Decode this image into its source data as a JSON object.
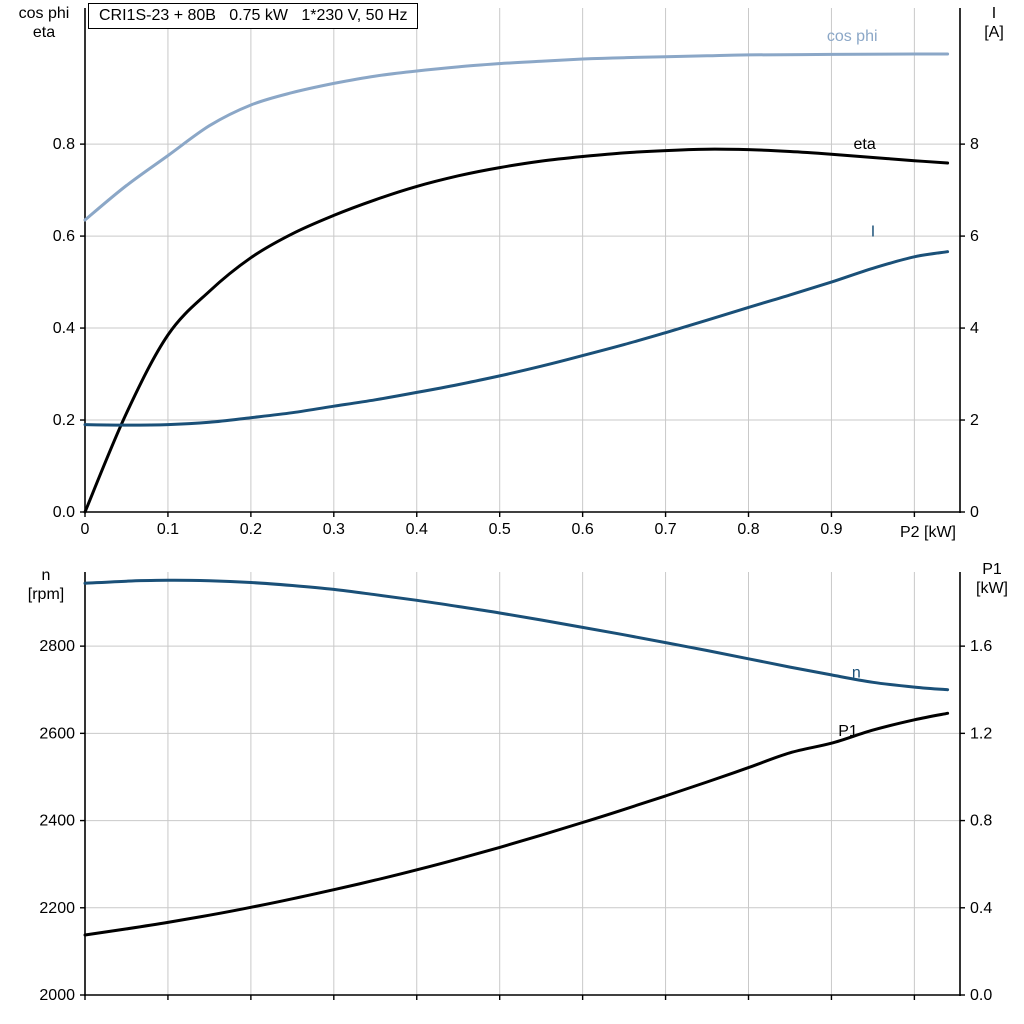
{
  "header": {
    "title_box": "CRI1S-23 + 80B   0.75 kW   1*230 V, 50 Hz"
  },
  "labels": {
    "top_left_line1": "cos phi",
    "top_left_line2": "eta",
    "top_right_line1": "I",
    "top_right_line2": "[A]",
    "x_axis_label": "P2 [kW]",
    "bottom_left_line1": "n",
    "bottom_left_line2": "[rpm]",
    "bottom_right_line1": "P1",
    "bottom_right_line2": "[kW]"
  },
  "colors": {
    "grid": "#c9c9c9",
    "axis": "#000000",
    "cos_phi": "#8ba7c7",
    "dark_blue": "#1a5078",
    "black_curve": "#000000"
  },
  "chart_data": [
    {
      "type": "line",
      "title": "CRI1S-23 + 80B   0.75 kW   1*230 V, 50 Hz",
      "x_label": "P2 [kW]",
      "x_range": [
        0,
        1.055
      ],
      "x_ticks": [
        0,
        0.1,
        0.2,
        0.3,
        0.4,
        0.5,
        0.6,
        0.7,
        0.8,
        0.9,
        1.0
      ],
      "x_tick_labels": [
        "0",
        "0.1",
        "0.2",
        "0.3",
        "0.4",
        "0.5",
        "0.6",
        "0.7",
        "0.8",
        "0.9",
        ""
      ],
      "left_axis": {
        "label": "cos phi / eta",
        "range": [
          0,
          1.096
        ],
        "ticks": [
          0,
          0.2,
          0.4,
          0.6,
          0.8
        ],
        "tick_labels": [
          "0.0",
          "0.2",
          "0.4",
          "0.6",
          "0.8"
        ]
      },
      "right_axis": {
        "label": "I [A]",
        "range": [
          0,
          10.96
        ],
        "ticks": [
          0,
          2,
          4,
          6,
          8
        ],
        "tick_labels": [
          "0",
          "2",
          "4",
          "6",
          "8"
        ]
      },
      "series": [
        {
          "name": "cos phi",
          "axis": "left",
          "color": "#8ba7c7",
          "label": {
            "text": "cos phi",
            "x": 0.925,
            "y": 1.035
          },
          "points": [
            [
              0,
              0.635
            ],
            [
              0.05,
              0.71
            ],
            [
              0.1,
              0.775
            ],
            [
              0.15,
              0.84
            ],
            [
              0.2,
              0.885
            ],
            [
              0.25,
              0.912
            ],
            [
              0.3,
              0.932
            ],
            [
              0.35,
              0.948
            ],
            [
              0.4,
              0.959
            ],
            [
              0.45,
              0.968
            ],
            [
              0.5,
              0.975
            ],
            [
              0.55,
              0.98
            ],
            [
              0.6,
              0.985
            ],
            [
              0.65,
              0.988
            ],
            [
              0.7,
              0.99
            ],
            [
              0.75,
              0.992
            ],
            [
              0.8,
              0.994
            ],
            [
              0.9,
              0.995
            ],
            [
              1.0,
              0.996
            ],
            [
              1.04,
              0.996
            ]
          ]
        },
        {
          "name": "eta",
          "axis": "left",
          "color": "#000000",
          "label": {
            "text": "eta",
            "x": 0.94,
            "y": 0.8
          },
          "points": [
            [
              0,
              0
            ],
            [
              0.05,
              0.215
            ],
            [
              0.1,
              0.385
            ],
            [
              0.15,
              0.48
            ],
            [
              0.2,
              0.553
            ],
            [
              0.25,
              0.605
            ],
            [
              0.3,
              0.645
            ],
            [
              0.35,
              0.679
            ],
            [
              0.4,
              0.708
            ],
            [
              0.45,
              0.731
            ],
            [
              0.5,
              0.749
            ],
            [
              0.55,
              0.763
            ],
            [
              0.6,
              0.773
            ],
            [
              0.65,
              0.781
            ],
            [
              0.7,
              0.786
            ],
            [
              0.75,
              0.789
            ],
            [
              0.8,
              0.788
            ],
            [
              0.85,
              0.784
            ],
            [
              0.9,
              0.778
            ],
            [
              0.95,
              0.771
            ],
            [
              1.0,
              0.764
            ],
            [
              1.04,
              0.759
            ]
          ]
        },
        {
          "name": "I",
          "axis": "right",
          "color": "#1a5078",
          "label": {
            "text": "I",
            "x": 0.95,
            "y": 6.1
          },
          "points": [
            [
              0,
              1.9
            ],
            [
              0.05,
              1.89
            ],
            [
              0.1,
              1.9
            ],
            [
              0.15,
              1.95
            ],
            [
              0.2,
              2.05
            ],
            [
              0.25,
              2.16
            ],
            [
              0.3,
              2.3
            ],
            [
              0.35,
              2.44
            ],
            [
              0.4,
              2.6
            ],
            [
              0.45,
              2.77
            ],
            [
              0.5,
              2.96
            ],
            [
              0.55,
              3.17
            ],
            [
              0.6,
              3.4
            ],
            [
              0.65,
              3.64
            ],
            [
              0.7,
              3.9
            ],
            [
              0.75,
              4.17
            ],
            [
              0.8,
              4.45
            ],
            [
              0.85,
              4.72
            ],
            [
              0.9,
              5.0
            ],
            [
              0.95,
              5.3
            ],
            [
              1.0,
              5.55
            ],
            [
              1.04,
              5.66
            ]
          ]
        }
      ]
    },
    {
      "type": "line",
      "title": "",
      "x_label": "",
      "x_range": [
        0,
        1.055
      ],
      "x_ticks": [
        0,
        0.1,
        0.2,
        0.3,
        0.4,
        0.5,
        0.6,
        0.7,
        0.8,
        0.9,
        1.0
      ],
      "x_tick_labels": [
        "",
        "",
        "",
        "",
        "",
        "",
        "",
        "",
        "",
        "",
        ""
      ],
      "left_axis": {
        "label": "n [rpm]",
        "range": [
          2000,
          2970
        ],
        "ticks": [
          2000,
          2200,
          2400,
          2600,
          2800
        ],
        "tick_labels": [
          "2000",
          "2200",
          "2400",
          "2600",
          "2800"
        ]
      },
      "right_axis": {
        "label": "P1 [kW]",
        "range": [
          0,
          1.94
        ],
        "ticks": [
          0,
          0.4,
          0.8,
          1.2,
          1.6
        ],
        "tick_labels": [
          "0.0",
          "0.4",
          "0.8",
          "1.2",
          "1.6"
        ]
      },
      "series": [
        {
          "name": "n",
          "axis": "left",
          "color": "#1a5078",
          "label": {
            "text": "n",
            "x": 0.93,
            "y": 2740
          },
          "points": [
            [
              0,
              2944
            ],
            [
              0.05,
              2949
            ],
            [
              0.1,
              2951
            ],
            [
              0.15,
              2950
            ],
            [
              0.2,
              2946
            ],
            [
              0.25,
              2939
            ],
            [
              0.3,
              2930
            ],
            [
              0.35,
              2918
            ],
            [
              0.4,
              2905
            ],
            [
              0.45,
              2891
            ],
            [
              0.5,
              2876
            ],
            [
              0.55,
              2860
            ],
            [
              0.6,
              2843
            ],
            [
              0.65,
              2826
            ],
            [
              0.7,
              2808
            ],
            [
              0.75,
              2790
            ],
            [
              0.8,
              2771
            ],
            [
              0.85,
              2752
            ],
            [
              0.9,
              2734
            ],
            [
              0.95,
              2717
            ],
            [
              1.0,
              2706
            ],
            [
              1.04,
              2700
            ]
          ]
        },
        {
          "name": "P1",
          "axis": "right",
          "color": "#000000",
          "label": {
            "text": "P1",
            "x": 0.92,
            "y": 1.21
          },
          "points": [
            [
              0,
              0.275
            ],
            [
              0.05,
              0.303
            ],
            [
              0.1,
              0.333
            ],
            [
              0.15,
              0.366
            ],
            [
              0.2,
              0.402
            ],
            [
              0.25,
              0.441
            ],
            [
              0.3,
              0.483
            ],
            [
              0.35,
              0.527
            ],
            [
              0.4,
              0.574
            ],
            [
              0.45,
              0.624
            ],
            [
              0.5,
              0.677
            ],
            [
              0.55,
              0.733
            ],
            [
              0.6,
              0.791
            ],
            [
              0.65,
              0.851
            ],
            [
              0.7,
              0.913
            ],
            [
              0.75,
              0.977
            ],
            [
              0.8,
              1.043
            ],
            [
              0.85,
              1.111
            ],
            [
              0.9,
              1.155
            ],
            [
              0.95,
              1.215
            ],
            [
              1.0,
              1.262
            ],
            [
              1.04,
              1.292
            ]
          ]
        }
      ]
    }
  ]
}
